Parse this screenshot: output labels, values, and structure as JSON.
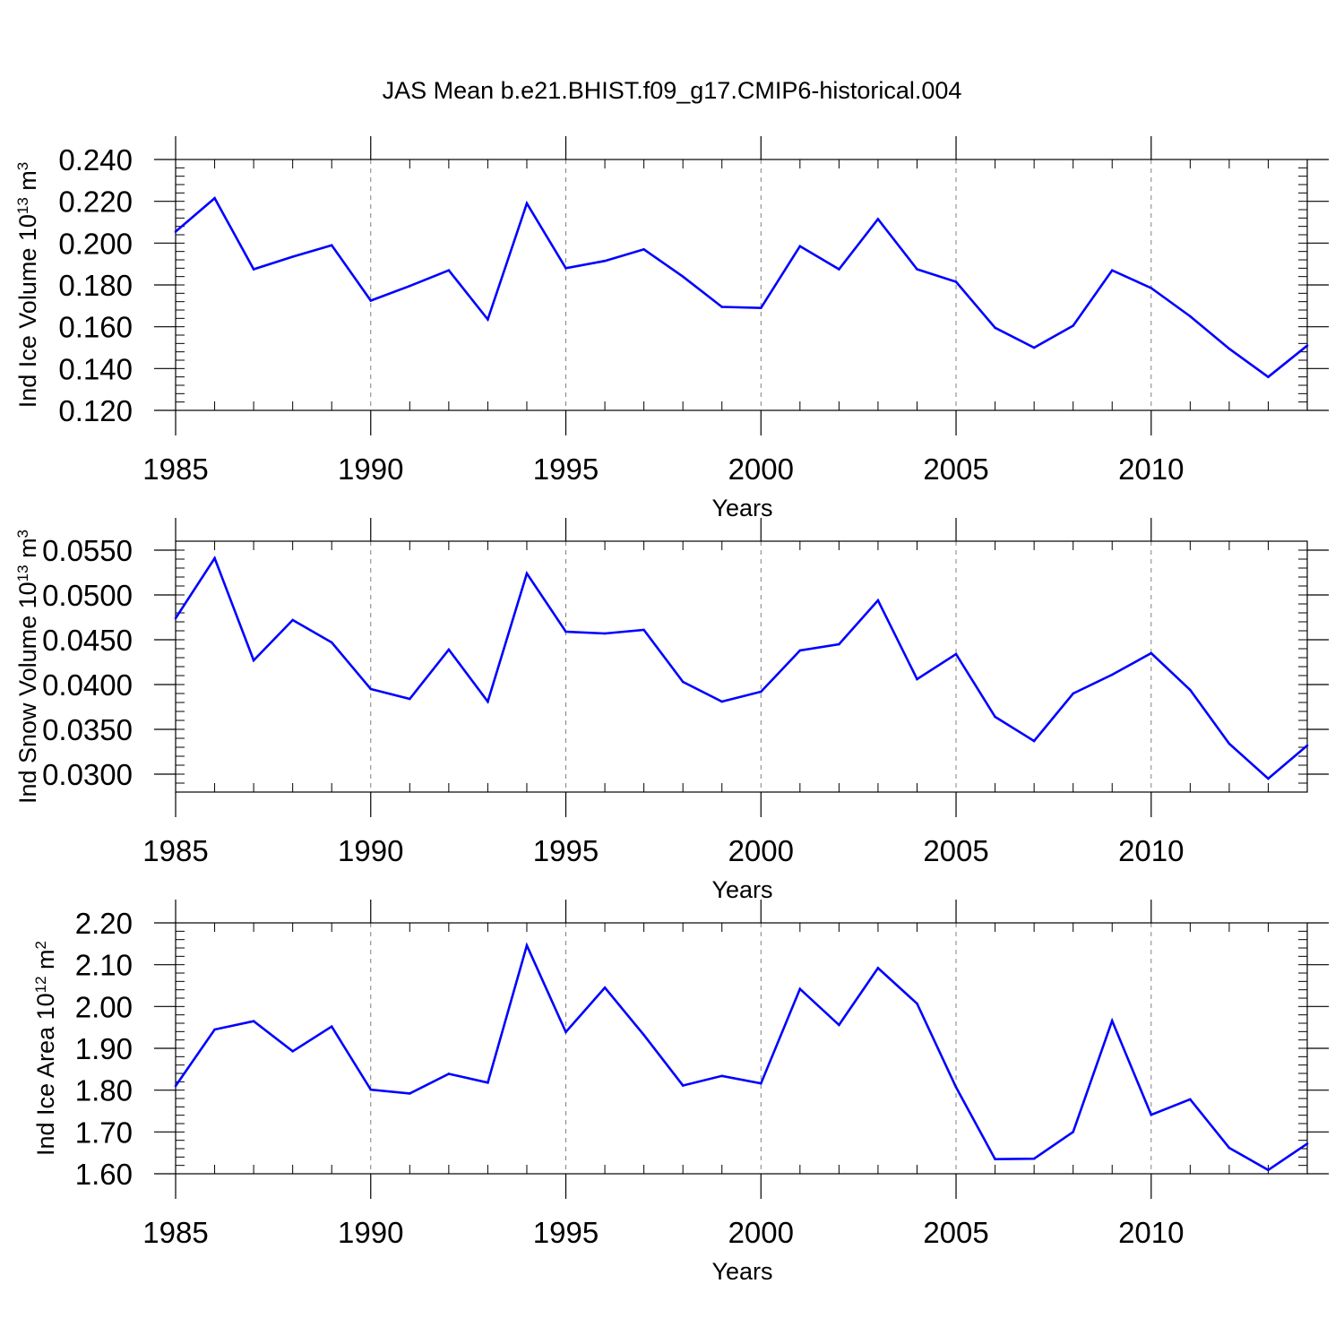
{
  "title": "JAS Mean b.e21.BHIST.f09_g17.CMIP6-historical.004",
  "colors": {
    "line": "#0000ff",
    "axis": "#000000",
    "grid": "#808080"
  },
  "chart_data": [
    {
      "type": "line",
      "ylabel": "Ind Ice Volume 10",
      "ylabel_exp": "13",
      "ylabel_unit": " m",
      "ylabel_unit_exp": "3",
      "xlabel": "Years",
      "xlim": [
        1985,
        2014
      ],
      "ylim": [
        0.12,
        0.24
      ],
      "yticks": [
        "0.120",
        "0.140",
        "0.160",
        "0.180",
        "0.200",
        "0.220",
        "0.240"
      ],
      "ytick_values": [
        0.12,
        0.14,
        0.16,
        0.18,
        0.2,
        0.22,
        0.24
      ],
      "xticks": [
        "1985",
        "1990",
        "1995",
        "2000",
        "2005",
        "2010"
      ],
      "xtick_values": [
        1985,
        1990,
        1995,
        2000,
        2005,
        2010
      ],
      "grid": "vertical dashed at major x ticks",
      "x": [
        1985,
        1986,
        1987,
        1988,
        1989,
        1990,
        1991,
        1992,
        1993,
        1994,
        1995,
        1996,
        1997,
        1998,
        1999,
        2000,
        2001,
        2002,
        2003,
        2004,
        2005,
        2006,
        2007,
        2008,
        2009,
        2010,
        2011,
        2012,
        2013,
        2014
      ],
      "values": [
        0.2055,
        0.2215,
        0.1875,
        0.1935,
        0.199,
        0.1725,
        0.1795,
        0.187,
        0.1635,
        0.219,
        0.188,
        0.1915,
        0.197,
        0.184,
        0.1695,
        0.169,
        0.1985,
        0.1875,
        0.2115,
        0.1875,
        0.1815,
        0.1595,
        0.15,
        0.1605,
        0.187,
        0.1785,
        0.165,
        0.1495,
        0.136,
        0.151
      ]
    },
    {
      "type": "line",
      "ylabel": "Ind Snow Volume 10",
      "ylabel_exp": "13",
      "ylabel_unit": " m",
      "ylabel_unit_exp": "3",
      "xlabel": "Years",
      "xlim": [
        1985,
        2014
      ],
      "ylim": [
        0.028,
        0.056
      ],
      "yticks": [
        "0.0300",
        "0.0350",
        "0.0400",
        "0.0450",
        "0.0500",
        "0.0550"
      ],
      "ytick_values": [
        0.03,
        0.035,
        0.04,
        0.045,
        0.05,
        0.055
      ],
      "xticks": [
        "1985",
        "1990",
        "1995",
        "2000",
        "2005",
        "2010"
      ],
      "xtick_values": [
        1985,
        1990,
        1995,
        2000,
        2005,
        2010
      ],
      "grid": "vertical dashed at major x ticks",
      "x": [
        1985,
        1986,
        1987,
        1988,
        1989,
        1990,
        1991,
        1992,
        1993,
        1994,
        1995,
        1996,
        1997,
        1998,
        1999,
        2000,
        2001,
        2002,
        2003,
        2004,
        2005,
        2006,
        2007,
        2008,
        2009,
        2010,
        2011,
        2012,
        2013,
        2014
      ],
      "values": [
        0.0474,
        0.0541,
        0.0427,
        0.0472,
        0.0447,
        0.0395,
        0.0384,
        0.0439,
        0.0381,
        0.0524,
        0.0459,
        0.0457,
        0.0461,
        0.0403,
        0.0381,
        0.0392,
        0.0438,
        0.0445,
        0.0494,
        0.0406,
        0.0434,
        0.0364,
        0.0337,
        0.039,
        0.0411,
        0.0435,
        0.0394,
        0.0334,
        0.0295,
        0.0332
      ]
    },
    {
      "type": "line",
      "ylabel": "Ind Ice Area 10",
      "ylabel_exp": "12",
      "ylabel_unit": " m",
      "ylabel_unit_exp": "2",
      "xlabel": "Years",
      "xlim": [
        1985,
        2014
      ],
      "ylim": [
        1.6,
        2.2
      ],
      "yticks": [
        "1.60",
        "1.70",
        "1.80",
        "1.90",
        "2.00",
        "2.10",
        "2.20"
      ],
      "ytick_values": [
        1.6,
        1.7,
        1.8,
        1.9,
        2.0,
        2.1,
        2.2
      ],
      "xticks": [
        "1985",
        "1990",
        "1995",
        "2000",
        "2005",
        "2010"
      ],
      "xtick_values": [
        1985,
        1990,
        1995,
        2000,
        2005,
        2010
      ],
      "grid": "vertical dashed at major x ticks",
      "x": [
        1985,
        1986,
        1987,
        1988,
        1989,
        1990,
        1991,
        1992,
        1993,
        1994,
        1995,
        1996,
        1997,
        1998,
        1999,
        2000,
        2001,
        2002,
        2003,
        2004,
        2005,
        2006,
        2007,
        2008,
        2009,
        2010,
        2011,
        2012,
        2013,
        2014
      ],
      "values": [
        1.81,
        1.945,
        1.965,
        1.893,
        1.952,
        1.801,
        1.792,
        1.839,
        1.818,
        2.146,
        1.939,
        2.045,
        1.932,
        1.811,
        1.834,
        1.816,
        2.042,
        1.956,
        2.092,
        2.007,
        1.807,
        1.635,
        1.636,
        1.7,
        1.966,
        1.741,
        1.778,
        1.662,
        1.609,
        1.672
      ]
    }
  ]
}
